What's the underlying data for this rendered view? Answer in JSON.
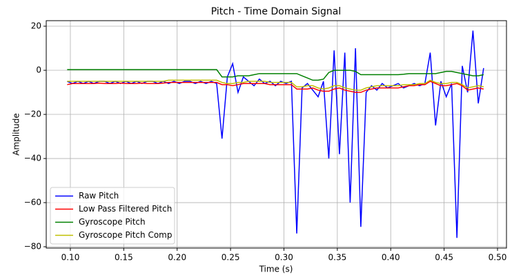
{
  "chart_data": {
    "type": "line",
    "title": "Pitch - Time Domain Signal",
    "x_label": "Time (s)",
    "y_label": "Amplitude",
    "x": [
      0.097,
      0.102,
      0.107,
      0.112,
      0.117,
      0.122,
      0.127,
      0.132,
      0.137,
      0.142,
      0.147,
      0.152,
      0.157,
      0.162,
      0.167,
      0.172,
      0.177,
      0.182,
      0.187,
      0.192,
      0.197,
      0.202,
      0.207,
      0.212,
      0.217,
      0.222,
      0.227,
      0.232,
      0.237,
      0.242,
      0.247,
      0.252,
      0.257,
      0.262,
      0.267,
      0.272,
      0.277,
      0.282,
      0.287,
      0.292,
      0.297,
      0.302,
      0.307,
      0.312,
      0.317,
      0.322,
      0.327,
      0.332,
      0.337,
      0.342,
      0.347,
      0.352,
      0.357,
      0.362,
      0.367,
      0.372,
      0.377,
      0.382,
      0.387,
      0.392,
      0.397,
      0.402,
      0.407,
      0.412,
      0.417,
      0.422,
      0.427,
      0.432,
      0.437,
      0.442,
      0.447,
      0.452,
      0.457,
      0.462,
      0.467,
      0.472,
      0.477,
      0.482,
      0.487
    ],
    "series": [
      {
        "name": "Raw Pitch",
        "color": "#0000ff",
        "values": [
          -5,
          -6,
          -5,
          -6,
          -5,
          -6,
          -5,
          -5,
          -6,
          -5,
          -6,
          -5,
          -6,
          -5,
          -6,
          -5,
          -5,
          -6,
          -5,
          -6,
          -5,
          -6,
          -5,
          -5,
          -6,
          -5,
          -6,
          -5,
          -6,
          -31,
          -3,
          3,
          -10,
          -3,
          -5,
          -7,
          -4,
          -6,
          -5,
          -7,
          -5,
          -6,
          -5,
          -74,
          -8,
          -6,
          -9,
          -12,
          -5,
          -40,
          9,
          -38,
          8,
          -60,
          10,
          -71,
          -10,
          -7,
          -9,
          -6,
          -8,
          -7,
          -6,
          -8,
          -7,
          -6,
          -7,
          -6,
          8,
          -25,
          -5,
          -12,
          -6,
          -76,
          2,
          -10,
          18,
          -15,
          1
        ]
      },
      {
        "name": "Low Pass Filtered Pitch",
        "color": "#ff0000",
        "values": [
          -6.5,
          -6,
          -6,
          -6,
          -6,
          -6,
          -5.8,
          -6,
          -6,
          -6,
          -5.8,
          -6,
          -6,
          -6,
          -5.8,
          -6,
          -6,
          -6,
          -5.8,
          -5.5,
          -5.5,
          -5.5,
          -5.5,
          -5.5,
          -5.5,
          -5.5,
          -5.5,
          -5.5,
          -5.5,
          -6.5,
          -6.5,
          -7,
          -6.5,
          -6,
          -6,
          -6,
          -6,
          -6,
          -6.5,
          -6.5,
          -6.5,
          -6.5,
          -6.5,
          -8.5,
          -8.5,
          -8.5,
          -8,
          -9,
          -9.5,
          -9.5,
          -8.5,
          -8,
          -9,
          -9.5,
          -10,
          -10,
          -9,
          -8.5,
          -8,
          -8,
          -8,
          -8,
          -8,
          -7.5,
          -7,
          -7,
          -6.5,
          -6.5,
          -5,
          -6,
          -7,
          -7,
          -6.5,
          -6,
          -7,
          -9,
          -8.5,
          -8,
          -8.5
        ]
      },
      {
        "name": "Gyroscope Pitch",
        "color": "#008000",
        "values": [
          0.3,
          0.3,
          0.3,
          0.3,
          0.3,
          0.3,
          0.3,
          0.3,
          0.3,
          0.3,
          0.3,
          0.3,
          0.3,
          0.3,
          0.3,
          0.3,
          0.3,
          0.3,
          0.3,
          0.3,
          0.3,
          0.3,
          0.3,
          0.3,
          0.3,
          0.3,
          0.3,
          0.3,
          0.3,
          -3,
          -3,
          -3,
          -2.5,
          -2.5,
          -2.5,
          -2,
          -1.5,
          -1.5,
          -1.5,
          -1.5,
          -1.5,
          -1.5,
          -1.5,
          -1.5,
          -2.5,
          -3.5,
          -4.5,
          -4.5,
          -4,
          -1,
          0,
          0,
          0,
          0,
          -0.5,
          -2,
          -2,
          -2,
          -2,
          -2,
          -2,
          -2,
          -2,
          -1.8,
          -1.5,
          -1.5,
          -1.5,
          -1.5,
          -1.5,
          -1.5,
          -1,
          -0.5,
          -0.5,
          -1,
          -1.5,
          -2,
          -2.5,
          -2.5,
          -2
        ]
      },
      {
        "name": "Gyroscope Pitch Comp",
        "color": "#bfbf00",
        "values": [
          -5,
          -5,
          -5,
          -5,
          -5,
          -5,
          -5,
          -5,
          -5,
          -5,
          -5,
          -5,
          -5,
          -5,
          -5,
          -5,
          -5,
          -5,
          -5,
          -4.5,
          -4.5,
          -4.5,
          -4.5,
          -4.5,
          -4.5,
          -4.5,
          -4.5,
          -4.5,
          -4.5,
          -5.5,
          -6,
          -6,
          -5.5,
          -5.5,
          -5,
          -5,
          -5,
          -5,
          -5.5,
          -5.5,
          -5.5,
          -5.5,
          -5.5,
          -7.5,
          -7.5,
          -7,
          -7,
          -8,
          -8.5,
          -8,
          -7,
          -7,
          -8,
          -8.5,
          -9,
          -9,
          -8,
          -7.5,
          -7,
          -7,
          -7,
          -7,
          -7,
          -6.5,
          -6.5,
          -6.5,
          -6,
          -6,
          -4.5,
          -5.5,
          -6,
          -6,
          -5.5,
          -5.5,
          -6.5,
          -8,
          -7.5,
          -7,
          -7.5
        ]
      }
    ],
    "xlim": [
      0.0774,
      0.5084
    ],
    "ylim": [
      -80.6,
      22.5
    ],
    "xticks": [
      {
        "value": 0.1,
        "label": "0.10"
      },
      {
        "value": 0.15,
        "label": "0.15"
      },
      {
        "value": 0.2,
        "label": "0.20"
      },
      {
        "value": 0.25,
        "label": "0.25"
      },
      {
        "value": 0.3,
        "label": "0.30"
      },
      {
        "value": 0.35,
        "label": "0.35"
      },
      {
        "value": 0.4,
        "label": "0.40"
      },
      {
        "value": 0.45,
        "label": "0.45"
      },
      {
        "value": 0.5,
        "label": "0.50"
      }
    ],
    "yticks": [
      {
        "value": -80,
        "label": "−80"
      },
      {
        "value": -60,
        "label": "−60"
      },
      {
        "value": -40,
        "label": "−40"
      },
      {
        "value": -20,
        "label": "−20"
      },
      0,
      20
    ],
    "grid": true,
    "legend": "lower left"
  }
}
